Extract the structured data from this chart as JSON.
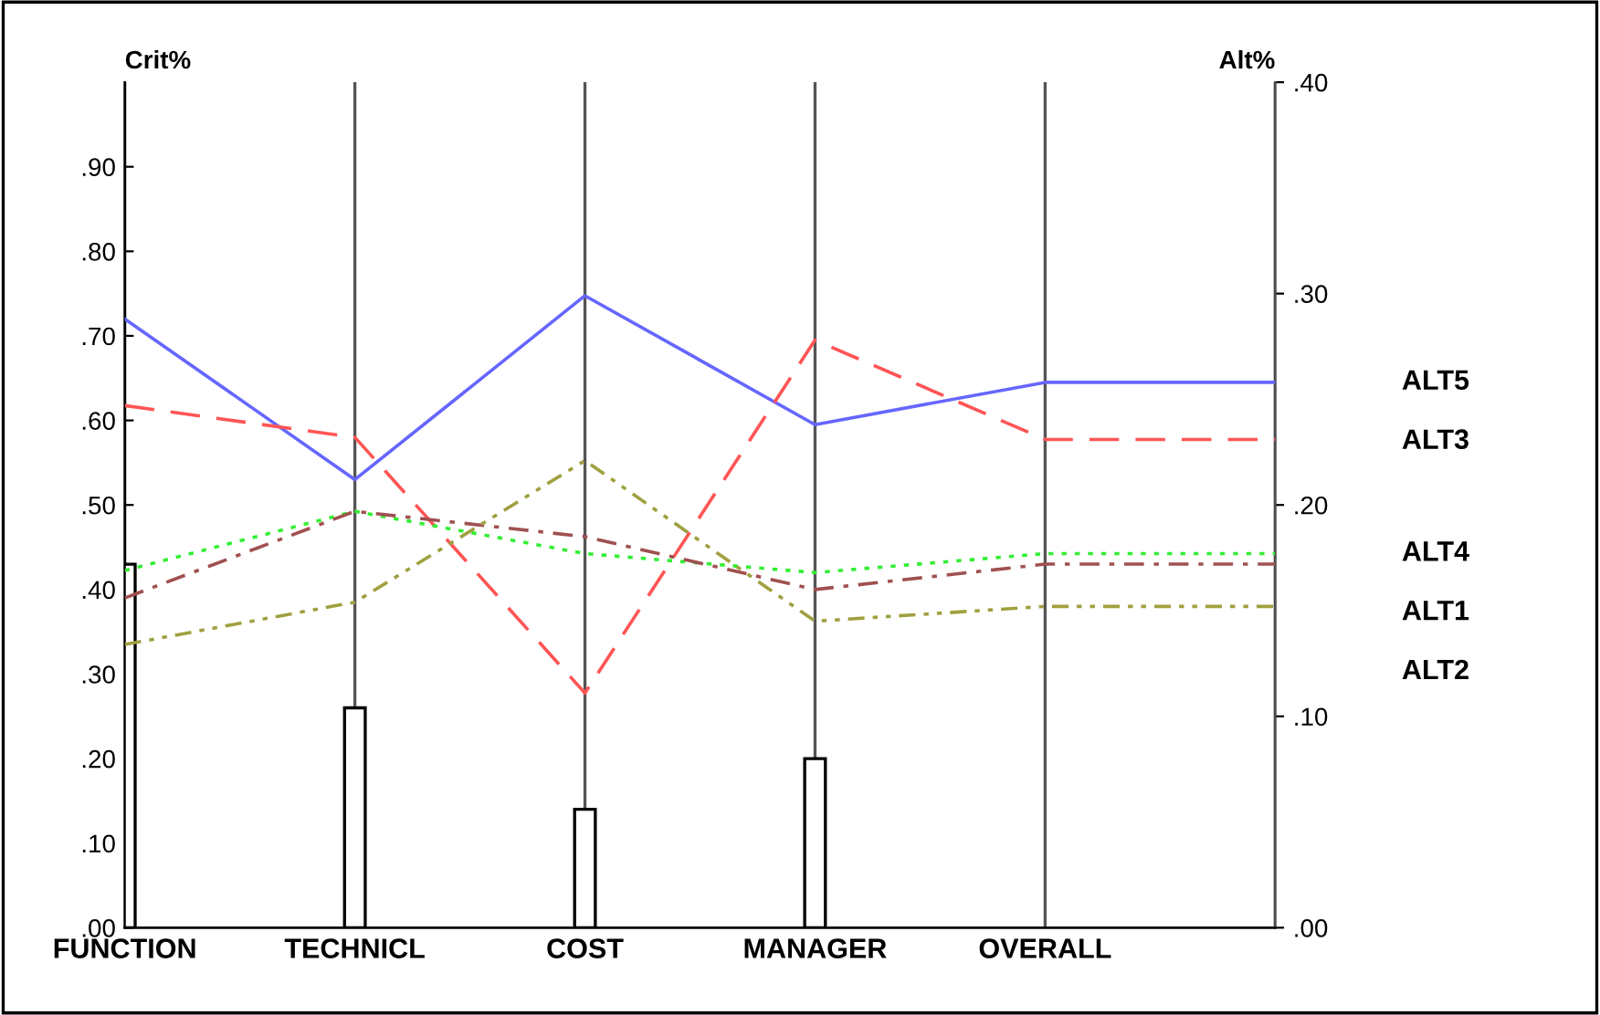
{
  "chart_data": {
    "type": "bar",
    "ylabel": "Crit%",
    "y2label": "Alt%",
    "categories": [
      "FUNCTION",
      "TECHNICL",
      "COST",
      "MANAGER",
      "OVERALL",
      null
    ],
    "series": [
      {
        "color": "#ffffff",
        "values": [
          0.43,
          0.26,
          0.14,
          0.2,
          null,
          null
        ]
      },
      {
        "type": "line",
        "name": "ALT5",
        "color": "#6666ff",
        "axis": "y2",
        "line_style": "solid",
        "values": [
          0.288,
          0.212,
          0.299,
          0.238,
          0.258,
          0.258
        ]
      },
      {
        "type": "line",
        "name": "ALT3",
        "color": "#ff5555",
        "axis": "y2",
        "line_style": "dashed",
        "values": [
          0.247,
          0.232,
          0.111,
          0.278,
          0.231,
          0.231
        ]
      },
      {
        "type": "line",
        "name": "ALT4",
        "color": "#33ee33",
        "axis": "y2",
        "line_style": "dotted",
        "values": [
          0.169,
          0.197,
          0.177,
          0.168,
          0.177,
          0.177
        ]
      },
      {
        "type": "line",
        "name": "ALT1",
        "color": "#a05050",
        "axis": "y2",
        "line_style": "dashdot",
        "values": [
          0.156,
          0.197,
          0.185,
          0.16,
          0.172,
          0.172
        ]
      },
      {
        "type": "line",
        "name": "ALT2",
        "color": "#a0a040",
        "axis": "y2",
        "line_style": "dashdotdot",
        "values": [
          0.134,
          0.154,
          0.221,
          0.145,
          0.152,
          0.152
        ]
      }
    ],
    "ylim": [
      0,
      1.0
    ],
    "yticks": [
      {
        "value": 0,
        "label": ".00"
      },
      {
        "value": 0.1,
        "label": ".10"
      },
      {
        "value": 0.2,
        "label": ".20"
      },
      {
        "value": 0.3,
        "label": ".30"
      },
      {
        "value": 0.4,
        "label": ".40"
      },
      {
        "value": 0.5,
        "label": ".50"
      },
      {
        "value": 0.6,
        "label": ".60"
      },
      {
        "value": 0.7,
        "label": ".70"
      },
      {
        "value": 0.8,
        "label": ".80"
      },
      {
        "value": 0.9,
        "label": ".90"
      }
    ],
    "y2lim": [
      0,
      0.4
    ],
    "y2ticks": [
      {
        "value": 0,
        "label": ".00"
      },
      {
        "value": 0.1,
        "label": ".10"
      },
      {
        "value": 0.2,
        "label": ".20"
      },
      {
        "value": 0.3,
        "label": ".30"
      },
      {
        "value": 0.4,
        "label": ".40"
      }
    ],
    "grid": "x",
    "legend": false
  }
}
